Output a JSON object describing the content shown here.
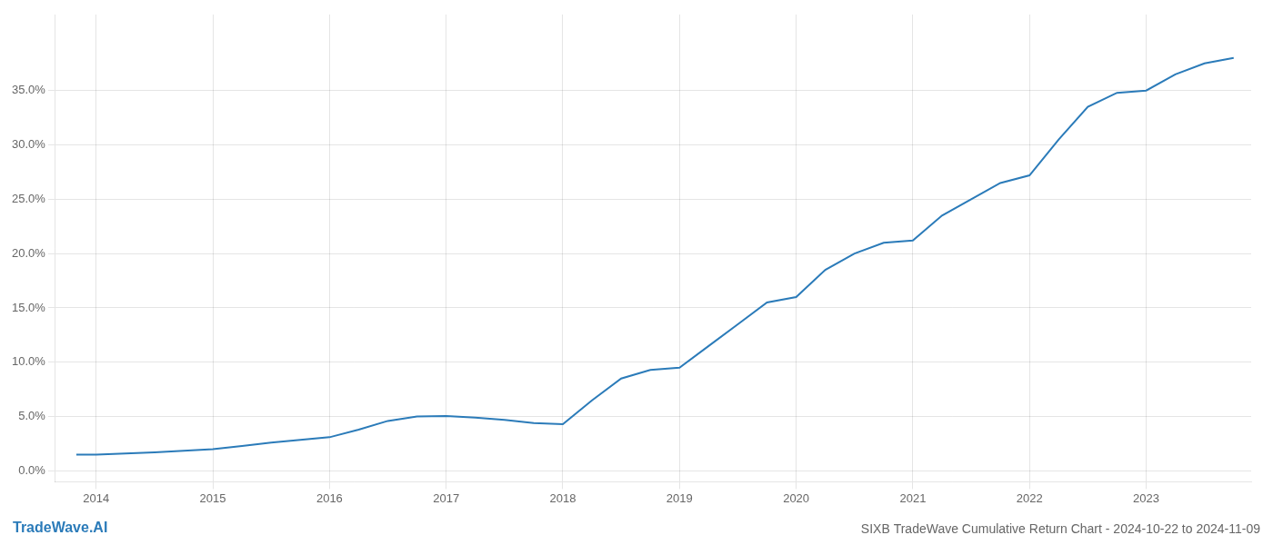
{
  "chart_data": {
    "type": "line",
    "title": "SIXB TradeWave Cumulative Return Chart - 2024-10-22 to 2024-11-09",
    "annotations": [
      {
        "text": "TradeWave.AI"
      }
    ],
    "x": [
      2013.83,
      2014.0,
      2014.25,
      2014.5,
      2014.75,
      2015.0,
      2015.25,
      2015.5,
      2015.75,
      2016.0,
      2016.25,
      2016.5,
      2016.75,
      2017.0,
      2017.25,
      2017.5,
      2017.75,
      2018.0,
      2018.25,
      2018.5,
      2018.75,
      2019.0,
      2019.25,
      2019.5,
      2019.75,
      2020.0,
      2020.25,
      2020.5,
      2020.75,
      2021.0,
      2021.25,
      2021.5,
      2021.75,
      2022.0,
      2022.25,
      2022.5,
      2022.75,
      2023.0,
      2023.25,
      2023.5,
      2023.75
    ],
    "values": [
      1.5,
      1.5,
      1.6,
      1.7,
      1.85,
      2.0,
      2.3,
      2.6,
      2.85,
      3.1,
      3.8,
      4.6,
      5.0,
      5.05,
      4.9,
      4.7,
      4.4,
      4.3,
      6.5,
      8.5,
      9.3,
      9.5,
      11.5,
      13.5,
      15.5,
      16.0,
      18.5,
      20.0,
      21.0,
      21.2,
      23.5,
      25.0,
      26.5,
      27.2,
      30.5,
      33.5,
      34.8,
      35.0,
      36.5,
      37.5,
      38.0
    ],
    "color": "#2b7bb9",
    "xlim": [
      2013.65,
      2023.9
    ],
    "xticks": [
      2014,
      2015,
      2016,
      2017,
      2018,
      2019,
      2020,
      2021,
      2022,
      2023
    ],
    "ylim": [
      -1.0,
      42.0
    ],
    "yticks": [
      {
        "value": 0.0,
        "label": "0.0%"
      },
      {
        "value": 5.0,
        "label": "5.0%"
      },
      {
        "value": 10.0,
        "label": "10.0%"
      },
      {
        "value": 15.0,
        "label": "15.0%"
      },
      {
        "value": 20.0,
        "label": "20.0%"
      },
      {
        "value": 25.0,
        "label": "25.0%"
      },
      {
        "value": 30.0,
        "label": "30.0%"
      },
      {
        "value": 35.0,
        "label": "35.0%"
      }
    ],
    "grid": true
  }
}
